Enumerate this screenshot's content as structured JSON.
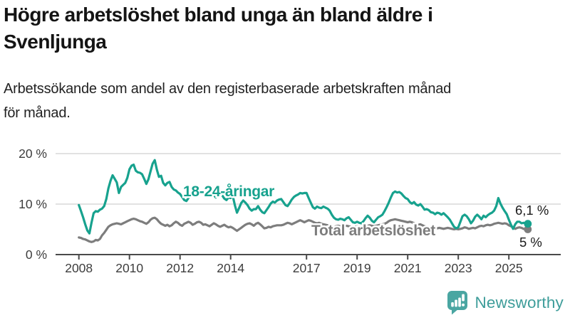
{
  "header": {
    "title_lines": [
      "Högre arbetslöshet bland unga än bland äldre i",
      "Svenljunga"
    ],
    "subtitle_lines": [
      "Arbetssökande som andel av den registerbaserade arbetskraften månad",
      "för månad."
    ]
  },
  "colors": {
    "accent_teal": "#17a28e",
    "line_gray": "#7d7d7d",
    "value_label": "#1a1a1a",
    "axis_text": "#3d3d3d",
    "grid": "#d9d9d9",
    "axis_line": "#4a4a4a",
    "logo_teal": "#4aa6a2",
    "brand_text_teal": "#3e9d9a"
  },
  "footer": {
    "brand": "Newsworthy",
    "logo_icon": "bar-chart-speech-bubble-icon"
  },
  "chart_data": {
    "type": "line",
    "title": "Högre arbetslöshet bland unga än bland äldre i Svenljunga",
    "subtitle": "Arbetssökande som andel av den registerbaserade arbetskraften månad för månad.",
    "xlabel": "",
    "ylabel": "%",
    "ylim": [
      0,
      20
    ],
    "grid": "horizontal",
    "x_start_year": 2008,
    "points_per_year": 12,
    "x_tick_years": [
      "2008",
      "2010",
      "2012",
      "2014",
      "2017",
      "2019",
      "2021",
      "2023",
      "2025"
    ],
    "y_ticks": [
      {
        "value": 0,
        "label": "0 %"
      },
      {
        "value": 10,
        "label": "10 %"
      },
      {
        "value": 20,
        "label": "20 %"
      }
    ],
    "series": [
      {
        "name": "18-24-åringar",
        "color": "#17a28e",
        "end_label": "6,1 %",
        "end_value": 6.1,
        "values": [
          9.8,
          8.6,
          7.4,
          6.0,
          4.8,
          4.2,
          6.3,
          8.2,
          8.6,
          8.5,
          8.9,
          9.1,
          9.6,
          11.0,
          13.1,
          14.6,
          15.7,
          15.0,
          14.3,
          12.2,
          13.4,
          13.8,
          14.2,
          15.2,
          16.9,
          17.6,
          17.8,
          16.6,
          16.3,
          16.2,
          15.9,
          15.0,
          14.0,
          14.9,
          16.5,
          18.0,
          18.7,
          16.8,
          15.4,
          15.6,
          14.2,
          13.7,
          14.2,
          14.4,
          13.4,
          12.9,
          12.7,
          12.3,
          12.0,
          11.4,
          10.8,
          10.6,
          11.2,
          11.8,
          12.4,
          12.0,
          11.5,
          12.1,
          12.6,
          12.3,
          12.0,
          12.5,
          13.0,
          12.4,
          11.8,
          11.3,
          11.9,
          12.3,
          11.7,
          11.1,
          10.8,
          11.3,
          11.2,
          11.6,
          9.8,
          8.3,
          9.2,
          10.2,
          10.7,
          10.3,
          9.8,
          9.1,
          8.7,
          9.0,
          9.0,
          9.6,
          8.9,
          8.4,
          8.2,
          8.8,
          9.4,
          10.1,
          10.5,
          10.3,
          10.7,
          10.9,
          11.0,
          10.4,
          9.8,
          9.6,
          10.2,
          10.9,
          11.4,
          11.7,
          11.9,
          12.2,
          12.1,
          12.2,
          12.2,
          11.2,
          10.3,
          9.4,
          9.1,
          9.5,
          9.3,
          9.2,
          9.5,
          9.3,
          9.1,
          8.7,
          7.9,
          7.3,
          7.0,
          6.9,
          7.1,
          7.0,
          6.8,
          7.2,
          7.4,
          6.9,
          6.4,
          6.3,
          6.5,
          6.3,
          6.2,
          6.6,
          7.2,
          7.7,
          7.3,
          6.7,
          6.4,
          6.9,
          7.4,
          7.6,
          7.9,
          8.6,
          9.4,
          10.3,
          11.3,
          12.2,
          12.5,
          12.3,
          12.4,
          12.1,
          11.6,
          11.2,
          11.0,
          10.4,
          10.1,
          10.4,
          9.9,
          9.7,
          10.0,
          9.5,
          8.9,
          9.0,
          8.8,
          8.4,
          8.3,
          8.0,
          8.3,
          8.2,
          7.9,
          8.2,
          7.8,
          7.4,
          6.9,
          6.2,
          5.5,
          5.2,
          5.4,
          6.5,
          7.6,
          7.9,
          7.6,
          7.0,
          6.2,
          6.7,
          7.5,
          7.9,
          7.5,
          7.0,
          7.7,
          7.4,
          7.8,
          8.1,
          8.3,
          8.7,
          9.6,
          11.2,
          10.1,
          9.3,
          8.6,
          8.0,
          6.9,
          5.9,
          5.1,
          6.0,
          6.5,
          6.5,
          6.2,
          6.3,
          6.2,
          6.1
        ]
      },
      {
        "name": "Total arbetslöshet",
        "color": "#7d7d7d",
        "end_label": "5 %",
        "end_value": 5.0,
        "values": [
          3.4,
          3.3,
          3.1,
          3.0,
          2.8,
          2.6,
          2.5,
          2.6,
          2.9,
          2.8,
          3.1,
          3.8,
          4.3,
          4.9,
          5.5,
          5.8,
          6.0,
          6.1,
          6.2,
          6.1,
          6.0,
          6.2,
          6.4,
          6.6,
          6.8,
          7.0,
          7.1,
          7.0,
          6.8,
          6.6,
          6.5,
          6.3,
          6.1,
          6.4,
          6.9,
          7.2,
          7.3,
          7.0,
          6.5,
          6.1,
          5.9,
          5.7,
          5.9,
          5.6,
          5.8,
          6.2,
          6.5,
          6.3,
          5.9,
          5.7,
          6.1,
          6.3,
          6.5,
          6.3,
          5.9,
          6.1,
          6.4,
          6.5,
          6.3,
          5.9,
          6.0,
          5.8,
          5.6,
          5.9,
          6.2,
          6.0,
          5.7,
          5.5,
          5.7,
          5.9,
          5.6,
          5.4,
          5.5,
          5.3,
          5.0,
          4.7,
          5.0,
          5.3,
          5.6,
          5.9,
          6.1,
          6.2,
          6.0,
          5.7,
          6.1,
          6.3,
          6.0,
          5.6,
          5.2,
          5.3,
          5.5,
          5.4,
          5.6,
          5.7,
          5.8,
          5.8,
          5.8,
          5.9,
          6.1,
          6.3,
          6.2,
          6.0,
          6.2,
          6.4,
          6.6,
          6.8,
          6.6,
          6.4,
          6.6,
          6.8,
          6.7,
          6.5,
          6.3,
          6.2,
          6.3,
          6.1,
          6.0,
          5.9,
          5.8,
          5.7,
          5.6,
          5.5,
          5.6,
          5.7,
          5.6,
          5.5,
          5.6,
          5.7,
          5.6,
          5.5,
          5.4,
          5.5,
          5.6,
          5.5,
          5.4,
          5.5,
          5.6,
          5.7,
          5.8,
          5.7,
          5.6,
          5.7,
          5.8,
          5.9,
          6.0,
          6.1,
          6.3,
          6.6,
          6.8,
          6.9,
          7.0,
          6.9,
          6.8,
          6.7,
          6.6,
          6.5,
          6.4,
          6.5,
          6.4,
          6.2,
          6.0,
          5.9,
          6.0,
          5.8,
          5.6,
          5.5,
          5.4,
          5.3,
          5.2,
          5.1,
          5.2,
          5.3,
          5.2,
          5.1,
          5.2,
          5.3,
          5.2,
          5.1,
          5.0,
          5.1,
          5.0,
          5.1,
          5.2,
          5.4,
          5.3,
          5.1,
          5.2,
          5.3,
          5.2,
          5.4,
          5.6,
          5.7,
          5.6,
          5.8,
          5.9,
          5.8,
          5.9,
          6.1,
          6.2,
          6.3,
          6.2,
          6.1,
          6.2,
          6.1,
          5.8,
          5.6,
          5.4,
          5.1,
          5.3,
          5.4,
          5.3,
          5.1,
          5.0,
          5.0
        ]
      }
    ]
  }
}
